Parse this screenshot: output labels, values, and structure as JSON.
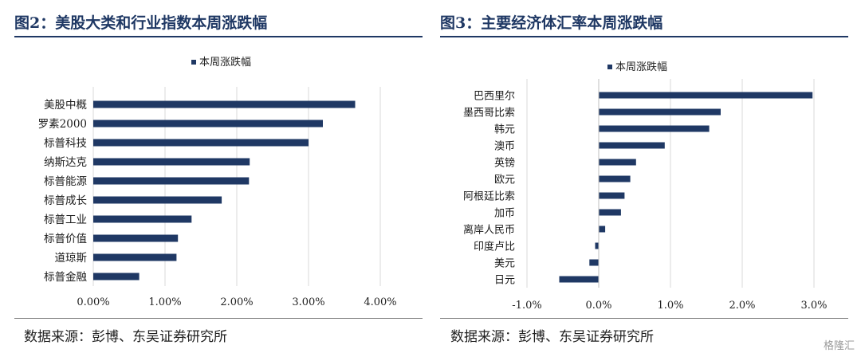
{
  "left": {
    "title": "图2：美股大类和行业指数本周涨跌幅",
    "source": "数据来源：彭博、东吴证券研究所"
  },
  "right": {
    "title": "图3：主要经济体汇率本周涨跌幅",
    "source": "数据来源：彭博、东吴证券研究所"
  },
  "watermark": "格隆汇",
  "colors": {
    "bar": "#1f3864",
    "title": "#1f3864",
    "grid": "#d9d9d9"
  },
  "chart_data": [
    {
      "type": "bar",
      "orientation": "horizontal",
      "legend": "本周涨跌幅",
      "legend_position": "top",
      "categories": [
        "美股中概",
        "罗素2000",
        "标普科技",
        "纳斯达克",
        "标普能源",
        "标普成长",
        "标普工业",
        "标普价值",
        "道琼斯",
        "标普金融"
      ],
      "values": [
        3.65,
        3.2,
        3.0,
        2.18,
        2.17,
        1.79,
        1.37,
        1.18,
        1.16,
        0.64
      ],
      "ticks": [
        "0.00%",
        "1.00%",
        "2.00%",
        "3.00%",
        "4.00%"
      ],
      "xlim": [
        0,
        4
      ],
      "grid": true
    },
    {
      "type": "bar",
      "orientation": "horizontal",
      "legend": "本周涨跌幅",
      "legend_position": "top",
      "categories": [
        "巴西里尔",
        "墨西哥比索",
        "韩元",
        "澳币",
        "英镑",
        "欧元",
        "阿根廷比索",
        "加币",
        "离岸人民币",
        "印度卢比",
        "美元",
        "日元"
      ],
      "values": [
        2.98,
        1.7,
        1.54,
        0.92,
        0.52,
        0.44,
        0.36,
        0.31,
        0.09,
        -0.05,
        -0.13,
        -0.55
      ],
      "ticks": [
        "-1.0%",
        "0.0%",
        "1.0%",
        "2.0%",
        "3.0%"
      ],
      "xlim": [
        -1,
        3
      ],
      "grid": true
    }
  ]
}
